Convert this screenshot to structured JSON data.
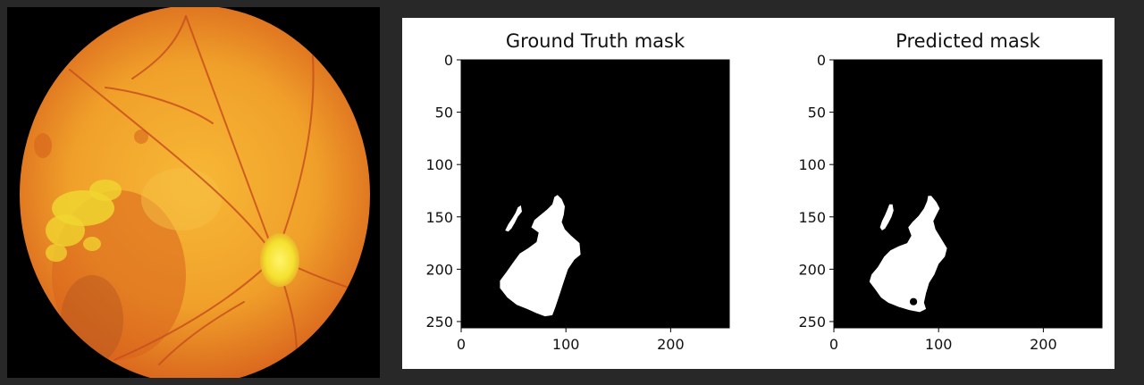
{
  "colors": {
    "page_background": "#282828",
    "fundus_frame": "#3c3c3c",
    "fundus_base": "#f0a02a",
    "fundus_rim": "#d9631d",
    "optic_disc": "#f5e12f",
    "exudate": "#f0d630",
    "vessel": "#c8501e",
    "figure_background": "#ffffff",
    "mask_background": "#000000",
    "mask_foreground": "#ffffff"
  },
  "chart_data": [
    {
      "type": "heatmap",
      "title": "Ground Truth mask",
      "xlabel": "",
      "ylabel": "",
      "xlim": [
        0,
        256
      ],
      "ylim": [
        256,
        0
      ],
      "xticks": [
        0,
        100,
        200
      ],
      "yticks": [
        0,
        50,
        100,
        150,
        200,
        250
      ],
      "grid": false,
      "regions": [
        {
          "label": "mask",
          "value": 1,
          "outline": [
            [
              89,
              131
            ],
            [
              92,
              129
            ],
            [
              96,
              133
            ],
            [
              99,
              140
            ],
            [
              98,
              148
            ],
            [
              96,
              155
            ],
            [
              99,
              162
            ],
            [
              105,
              168
            ],
            [
              113,
              175
            ],
            [
              114,
              186
            ],
            [
              108,
              191
            ],
            [
              102,
              200
            ],
            [
              98,
              212
            ],
            [
              94,
              224
            ],
            [
              90,
              236
            ],
            [
              87,
              244
            ],
            [
              80,
              245
            ],
            [
              72,
              242
            ],
            [
              63,
              238
            ],
            [
              53,
              234
            ],
            [
              44,
              227
            ],
            [
              37,
              218
            ],
            [
              37,
              211
            ],
            [
              43,
              203
            ],
            [
              50,
              193
            ],
            [
              56,
              185
            ],
            [
              64,
              180
            ],
            [
              72,
              174
            ],
            [
              74,
              165
            ],
            [
              67,
              160
            ],
            [
              70,
              153
            ],
            [
              76,
              148
            ],
            [
              82,
              143
            ],
            [
              87,
              138
            ]
          ]
        },
        {
          "label": "mask",
          "value": 1,
          "outline": [
            [
              54,
              141
            ],
            [
              57,
              139
            ],
            [
              58,
              145
            ],
            [
              54,
              150
            ],
            [
              51,
              156
            ],
            [
              48,
              161
            ],
            [
              45,
              164
            ],
            [
              42,
              163
            ],
            [
              45,
              157
            ],
            [
              49,
              151
            ],
            [
              52,
              146
            ]
          ]
        }
      ]
    },
    {
      "type": "heatmap",
      "title": "Predicted mask",
      "xlabel": "",
      "ylabel": "",
      "xlim": [
        0,
        256
      ],
      "ylim": [
        256,
        0
      ],
      "xticks": [
        0,
        100,
        200
      ],
      "yticks": [
        0,
        50,
        100,
        150,
        200,
        250
      ],
      "grid": false,
      "regions": [
        {
          "label": "mask",
          "value": 1,
          "outline": [
            [
              90,
              130
            ],
            [
              93,
              130
            ],
            [
              98,
              136
            ],
            [
              101,
              142
            ],
            [
              98,
              148
            ],
            [
              95,
              154
            ],
            [
              97,
              162
            ],
            [
              102,
              170
            ],
            [
              108,
              180
            ],
            [
              106,
              188
            ],
            [
              100,
              195
            ],
            [
              96,
              205
            ],
            [
              91,
              213
            ],
            [
              88,
              223
            ],
            [
              86,
              232
            ],
            [
              88,
              238
            ],
            [
              82,
              241
            ],
            [
              72,
              239
            ],
            [
              62,
              236
            ],
            [
              52,
              232
            ],
            [
              45,
              227
            ],
            [
              40,
              220
            ],
            [
              34,
              212
            ],
            [
              36,
              205
            ],
            [
              42,
              198
            ],
            [
              48,
              188
            ],
            [
              54,
              182
            ],
            [
              62,
              178
            ],
            [
              70,
              175
            ],
            [
              74,
              168
            ],
            [
              71,
              160
            ],
            [
              75,
              155
            ],
            [
              81,
              149
            ],
            [
              86,
              142
            ],
            [
              89,
              135
            ]
          ]
        },
        {
          "label": "mask",
          "value": 1,
          "outline": [
            [
              53,
              138
            ],
            [
              56,
              138
            ],
            [
              57,
              144
            ],
            [
              55,
              150
            ],
            [
              52,
              156
            ],
            [
              49,
              161
            ],
            [
              46,
              163
            ],
            [
              44,
              160
            ],
            [
              46,
              154
            ],
            [
              49,
              148
            ],
            [
              51,
              143
            ]
          ]
        }
      ],
      "holes": [
        {
          "label": "hole",
          "value": 0,
          "center": [
            76,
            231
          ],
          "radius": 3.5
        }
      ]
    }
  ]
}
